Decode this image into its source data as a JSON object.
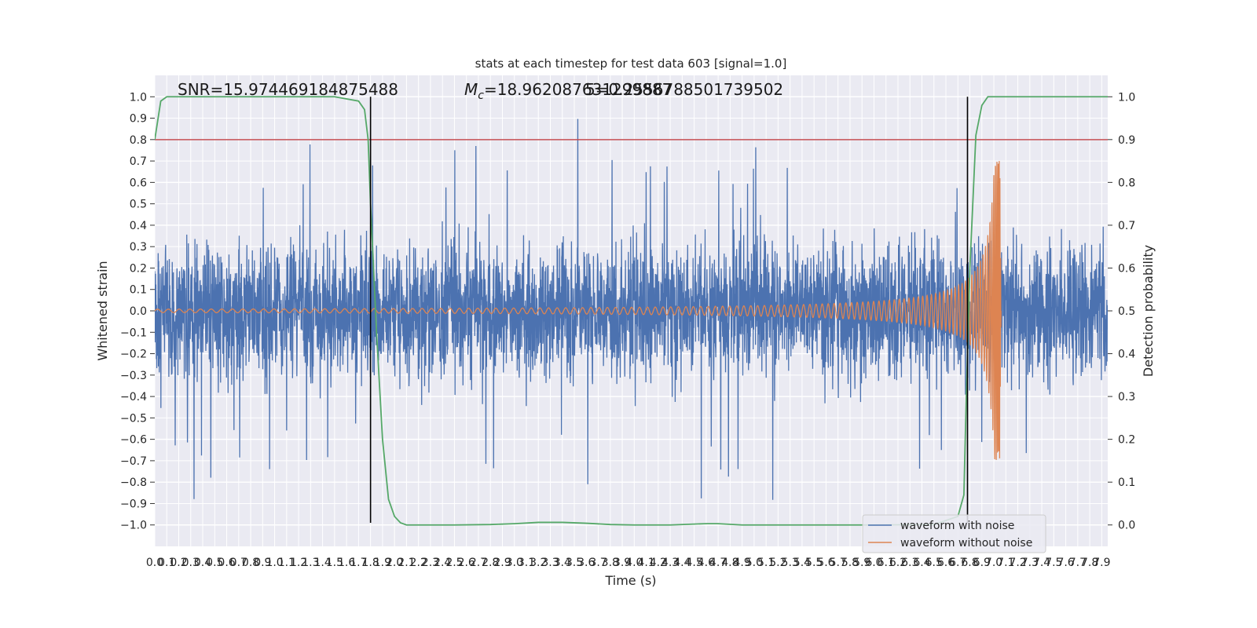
{
  "chart_data": {
    "type": "line",
    "title": "stats at each timestep for test data 603 [signal=1.0]",
    "xlabel": "Time (s)",
    "ylabel": "Whitened strain",
    "y2label": "Detection probability",
    "xlim": [
      0.0,
      7.95
    ],
    "ylim": [
      -1.1,
      1.1
    ],
    "y2lim": [
      -0.05,
      1.05
    ],
    "grid": true,
    "x_tick_step": 0.1,
    "y_ticks": [
      -1.0,
      -0.9,
      -0.8,
      -0.7,
      -0.6,
      -0.5,
      -0.4,
      -0.3,
      -0.2,
      -0.1,
      0.0,
      0.1,
      0.2,
      0.3,
      0.4,
      0.5,
      0.6,
      0.7,
      0.8,
      0.9,
      1.0
    ],
    "y_tick_labels": [
      "−1.0",
      "−0.9",
      "−0.8",
      "−0.7",
      "−0.6",
      "−0.5",
      "−0.4",
      "−0.3",
      "−0.2",
      "−0.1",
      "0.0",
      "0.1",
      "0.2",
      "0.3",
      "0.4",
      "0.5",
      "0.6",
      "0.7",
      "0.8",
      "0.9",
      "1.0"
    ],
    "y2_ticks": [
      0.0,
      0.1,
      0.2,
      0.3,
      0.4,
      0.5,
      0.6,
      0.7,
      0.8,
      0.9,
      1.0
    ],
    "y2_tick_labels": [
      "0.0",
      "0.1",
      "0.2",
      "0.3",
      "0.4",
      "0.5",
      "0.6",
      "0.7",
      "0.8",
      "0.9",
      "1.0"
    ],
    "annotations": {
      "snr": "SNR=15.974469184875488",
      "mc_label": "M",
      "mc_sub": "c",
      "mc_value": "=18.962087631299887",
      "mc_overlap": "5=0.2556788501739502"
    },
    "series": [
      {
        "name": "waveform with noise",
        "color": "#4c72b0",
        "amplitude": 0.42,
        "spike_max": 1.0,
        "spike_min": -0.95
      },
      {
        "name": "waveform without noise",
        "color": "#dd8452",
        "start_amplitude": 0.008,
        "peak_amplitude": 0.7,
        "peak_time": 7.05,
        "end_time": 7.06
      },
      {
        "color": "#55a868",
        "x": [
          0.0,
          0.05,
          0.1,
          0.2,
          1.5,
          1.7,
          1.75,
          1.78,
          1.8,
          1.85,
          1.9,
          1.95,
          2.0,
          2.05,
          2.1,
          2.2,
          2.3,
          2.5,
          2.8,
          3.0,
          3.2,
          3.4,
          3.6,
          3.8,
          4.0,
          4.3,
          4.6,
          4.7,
          4.9,
          5.2,
          5.5,
          6.0,
          6.5,
          6.7,
          6.75,
          6.77,
          6.8,
          6.85,
          6.9,
          6.95,
          7.0,
          7.5,
          7.95
        ],
        "y": [
          0.9,
          0.99,
          1.0,
          1.0,
          1.0,
          0.99,
          0.97,
          0.9,
          0.75,
          0.45,
          0.2,
          0.06,
          0.02,
          0.005,
          0.0,
          0.0,
          0.0,
          0.0,
          0.001,
          0.003,
          0.006,
          0.006,
          0.004,
          0.001,
          0.0,
          0.0,
          0.003,
          0.003,
          0.0,
          0.0,
          0.0,
          0.0,
          0.001,
          0.02,
          0.07,
          0.3,
          0.6,
          0.91,
          0.98,
          1.0,
          1.0,
          1.0,
          1.0
        ]
      }
    ],
    "hlines": [
      {
        "y": 0.8,
        "color": "#c44e52"
      }
    ],
    "vlines": [
      {
        "x": 1.8,
        "y_from": -0.99,
        "y_to": 1.0,
        "color": "#000000"
      },
      {
        "x": 6.78,
        "y_from": -0.99,
        "y_to": 1.0,
        "color": "#000000"
      }
    ],
    "legend": {
      "position": "lower-right",
      "entries": [
        "waveform with noise",
        "waveform without noise"
      ]
    }
  }
}
